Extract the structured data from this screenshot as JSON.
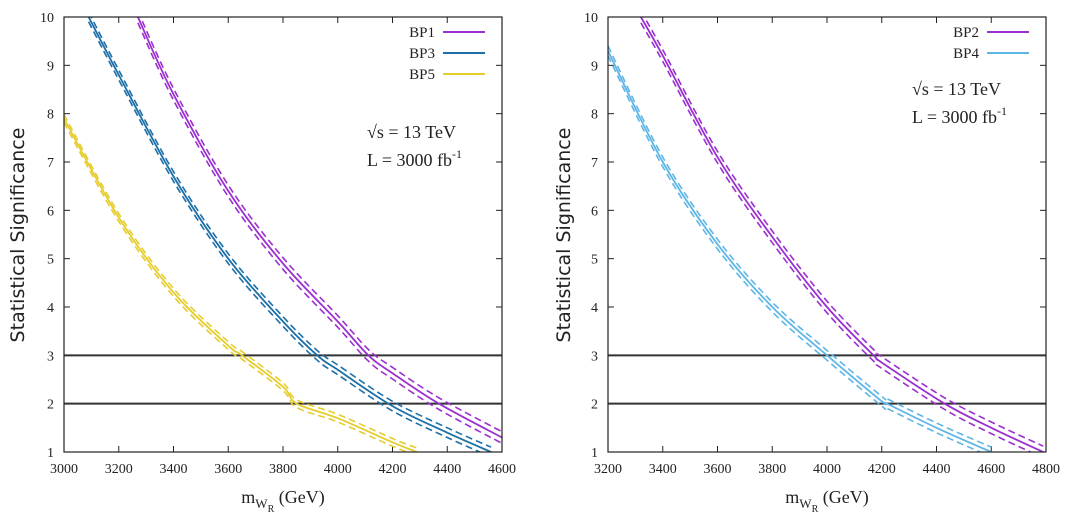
{
  "chart_data": [
    {
      "type": "line",
      "xlabel_main": "m",
      "xlabel_sub": "W",
      "xlabel_subsub": "R",
      "xlabel_unit": " (GeV)",
      "ylabel": "Statistical Significance",
      "xlim": [
        3000,
        4600
      ],
      "ylim": [
        1,
        10
      ],
      "x_ticks": [
        "3000",
        "3200",
        "3400",
        "3600",
        "3800",
        "4000",
        "4200",
        "4400",
        "4600"
      ],
      "y_ticks": [
        "1",
        "2",
        "3",
        "4",
        "5",
        "6",
        "7",
        "8",
        "9",
        "10"
      ],
      "legend_position": "top-right",
      "annotation": {
        "line1": "√s = 13 TeV",
        "line2": "L = 3000 fb",
        "line2_sup": "-1"
      },
      "reference_lines": [
        2,
        3
      ],
      "series": [
        {
          "name": "BP1",
          "color": "#9b30d0",
          "x": [
            3270,
            3400,
            3600,
            3800,
            4000,
            4112,
            4200,
            4370,
            4600
          ],
          "y": [
            10.0,
            8.4,
            6.4,
            4.9,
            3.7,
            3.0,
            2.63,
            2.0,
            1.3
          ],
          "band_halfwidth": 0.12
        },
        {
          "name": "BP3",
          "color": "#1c6fa8",
          "x": [
            3090,
            3200,
            3400,
            3600,
            3800,
            3925,
            4000,
            4200,
            4400,
            4560
          ],
          "y": [
            10.0,
            8.8,
            6.7,
            5.0,
            3.7,
            3.0,
            2.7,
            1.95,
            1.4,
            1.0
          ],
          "band_halfwidth": 0.1
        },
        {
          "name": "BP5",
          "color": "#e6cd2e",
          "x": [
            3000,
            3200,
            3400,
            3600,
            3650,
            3800,
            3850,
            4000,
            4200,
            4290
          ],
          "y": [
            7.9,
            5.85,
            4.3,
            3.2,
            3.0,
            2.35,
            2.0,
            1.7,
            1.2,
            1.0
          ],
          "band_halfwidth": 0.08
        }
      ]
    },
    {
      "type": "line",
      "xlabel_main": "m",
      "xlabel_sub": "W",
      "xlabel_subsub": "R",
      "xlabel_unit": " (GeV)",
      "ylabel": "Statistical Significance",
      "xlim": [
        3200,
        4800
      ],
      "ylim": [
        1,
        10
      ],
      "x_ticks": [
        "3200",
        "3400",
        "3600",
        "3800",
        "4000",
        "4200",
        "4400",
        "4600",
        "4800"
      ],
      "y_ticks": [
        "1",
        "2",
        "3",
        "4",
        "5",
        "6",
        "7",
        "8",
        "9",
        "10"
      ],
      "legend_position": "top-right",
      "annotation": {
        "line1": "√s = 13 TeV",
        "line2": "L = 3000 fb",
        "line2_sup": "-1"
      },
      "reference_lines": [
        2,
        3
      ],
      "series": [
        {
          "name": "BP2",
          "color": "#9b30d0",
          "x": [
            3320,
            3400,
            3600,
            3800,
            4000,
            4170,
            4200,
            4430,
            4600,
            4790
          ],
          "y": [
            10.0,
            9.2,
            7.1,
            5.45,
            4.0,
            3.0,
            2.85,
            2.0,
            1.5,
            1.0
          ],
          "band_halfwidth": 0.12
        },
        {
          "name": "BP4",
          "color": "#5fb6e6",
          "x": [
            3200,
            3400,
            3600,
            3800,
            4000,
            4200,
            4220,
            4400,
            4600
          ],
          "y": [
            9.3,
            7.0,
            5.3,
            4.0,
            3.0,
            2.05,
            2.0,
            1.5,
            1.0
          ],
          "band_halfwidth": 0.1
        }
      ]
    }
  ]
}
